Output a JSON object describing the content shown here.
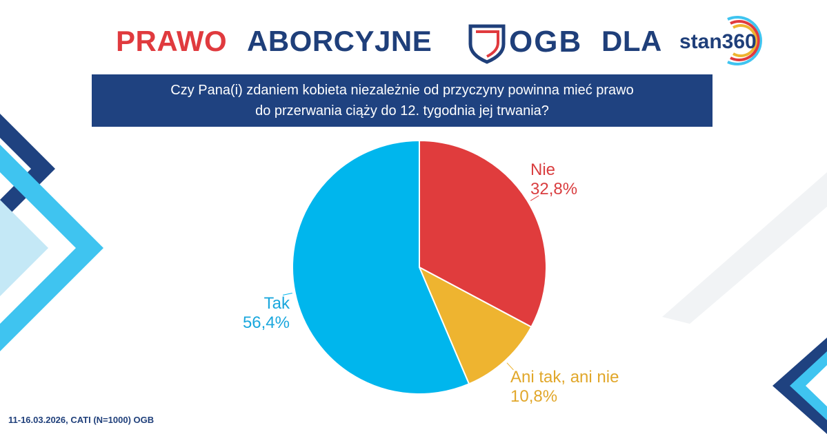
{
  "header": {
    "title_word_1": "PRAWO",
    "title_word_2": "ABORCYJNE",
    "logo_ogb_text": "OGB",
    "title_word_3": "DLA",
    "logo_stan_text": "stan360"
  },
  "question": {
    "line_1": "Czy Pana(i) zdaniem kobieta niezależnie od przyczyny powinna mieć prawo",
    "line_2": "do przerwania ciąży do 12. tygodnia jej trwania?"
  },
  "chart_data": {
    "type": "pie",
    "slices": [
      {
        "label": "Nie",
        "value": 32.8,
        "value_text": "32,8%",
        "color": "#e03c3d"
      },
      {
        "label": "Ani tak, ani nie",
        "value": 10.8,
        "value_text": "10,8%",
        "color": "#eeb430"
      },
      {
        "label": "Tak",
        "value": 56.4,
        "value_text": "56,4%",
        "color": "#00b6ed"
      }
    ],
    "start_angle": "12 o'clock",
    "direction": "clockwise"
  },
  "footer": {
    "source": "11-16.03.2026, CATI (N=1000) OGB"
  },
  "colors": {
    "navy": "#1f4280",
    "red": "#e03a3e",
    "light_blue": "#3fc4f0"
  }
}
